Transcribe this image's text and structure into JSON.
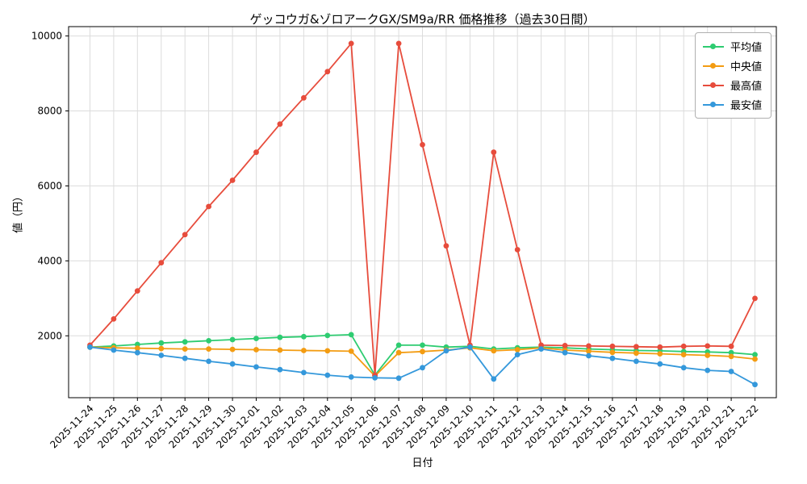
{
  "chart_data": {
    "type": "line",
    "title": "ゲッコウガ&ゾロアークGX/SM9a/RR 価格推移（過去30日間）",
    "xlabel": "日付",
    "ylabel": "値（円）",
    "grid": true,
    "grid_color": "#dcdcdc",
    "legend_position": "upper right",
    "yticks": [
      2000,
      4000,
      6000,
      8000,
      10000
    ],
    "ylim": [
      350,
      10250
    ],
    "x": [
      "2025-11-24",
      "2025-11-25",
      "2025-11-26",
      "2025-11-27",
      "2025-11-28",
      "2025-11-29",
      "2025-11-30",
      "2025-12-01",
      "2025-12-02",
      "2025-12-03",
      "2025-12-04",
      "2025-12-05",
      "2025-12-06",
      "2025-12-07",
      "2025-12-08",
      "2025-12-09",
      "2025-12-10",
      "2025-12-11",
      "2025-12-12",
      "2025-12-13",
      "2025-12-14",
      "2025-12-15",
      "2025-12-16",
      "2025-12-17",
      "2025-12-18",
      "2025-12-19",
      "2025-12-20",
      "2025-12-21",
      "2025-12-22"
    ],
    "series": [
      {
        "name": "平均値",
        "key": "average",
        "color": "#2ecc71",
        "values": [
          1700,
          1730,
          1770,
          1810,
          1840,
          1870,
          1900,
          1930,
          1960,
          1980,
          2010,
          2030,
          950,
          1750,
          1750,
          1700,
          1720,
          1650,
          1680,
          1700,
          1680,
          1650,
          1630,
          1610,
          1600,
          1580,
          1570,
          1550,
          1500
        ]
      },
      {
        "name": "中央値",
        "key": "median",
        "color": "#f39c12",
        "values": [
          1700,
          1680,
          1670,
          1660,
          1650,
          1650,
          1640,
          1630,
          1620,
          1610,
          1600,
          1590,
          930,
          1550,
          1580,
          1620,
          1680,
          1600,
          1630,
          1680,
          1620,
          1590,
          1560,
          1540,
          1520,
          1500,
          1480,
          1450,
          1380
        ]
      },
      {
        "name": "最高値",
        "key": "max",
        "color": "#e74c3c",
        "values": [
          1750,
          2450,
          3200,
          3950,
          4700,
          5450,
          6150,
          6900,
          7650,
          8350,
          9050,
          9800,
          950,
          9800,
          7100,
          4400,
          1750,
          6900,
          4300,
          1750,
          1740,
          1730,
          1720,
          1710,
          1700,
          1720,
          1730,
          1720,
          3000
        ]
      },
      {
        "name": "最安値",
        "key": "min",
        "color": "#3498db",
        "values": [
          1700,
          1620,
          1550,
          1480,
          1400,
          1320,
          1250,
          1170,
          1100,
          1020,
          950,
          900,
          880,
          870,
          1150,
          1600,
          1700,
          850,
          1500,
          1650,
          1550,
          1470,
          1400,
          1320,
          1250,
          1150,
          1080,
          1050,
          700
        ]
      }
    ]
  }
}
